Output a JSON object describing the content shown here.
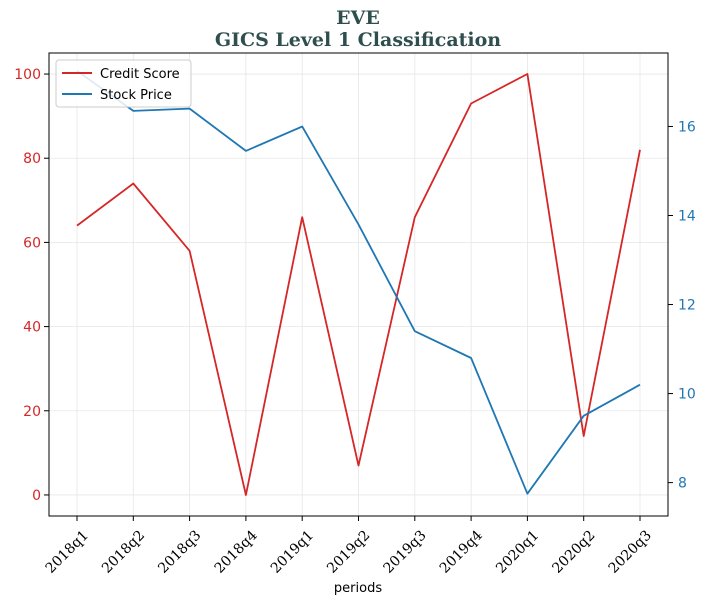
{
  "chart_data": {
    "type": "line",
    "title": "EVE",
    "subtitle": "GICS Level 1 Classification",
    "xlabel": "periods",
    "ylabel_left": "",
    "ylabel_right": "",
    "categories": [
      "2018q1",
      "2018q2",
      "2018q3",
      "2018q4",
      "2019q1",
      "2019q2",
      "2019q3",
      "2019q4",
      "2020q1",
      "2020q2",
      "2020q3"
    ],
    "series": [
      {
        "name": "Credit Score",
        "axis": "left",
        "color": "#d62728",
        "values": [
          64,
          74,
          58,
          0,
          66,
          7,
          66,
          93,
          100,
          14,
          82
        ]
      },
      {
        "name": "Stock Price",
        "axis": "right",
        "color": "#1f77b4",
        "values": [
          17.25,
          16.35,
          16.4,
          15.45,
          16.0,
          13.8,
          11.4,
          10.8,
          7.75,
          9.5,
          10.2
        ]
      }
    ],
    "y_left": {
      "lim": [
        -5,
        105
      ],
      "ticks": [
        0,
        20,
        40,
        60,
        80,
        100
      ],
      "color": "#d62728"
    },
    "y_right": {
      "lim": [
        7.25,
        17.65
      ],
      "ticks": [
        8,
        10,
        12,
        14,
        16
      ],
      "color": "#1f77b4"
    },
    "grid": true,
    "legend": "upper-left"
  }
}
